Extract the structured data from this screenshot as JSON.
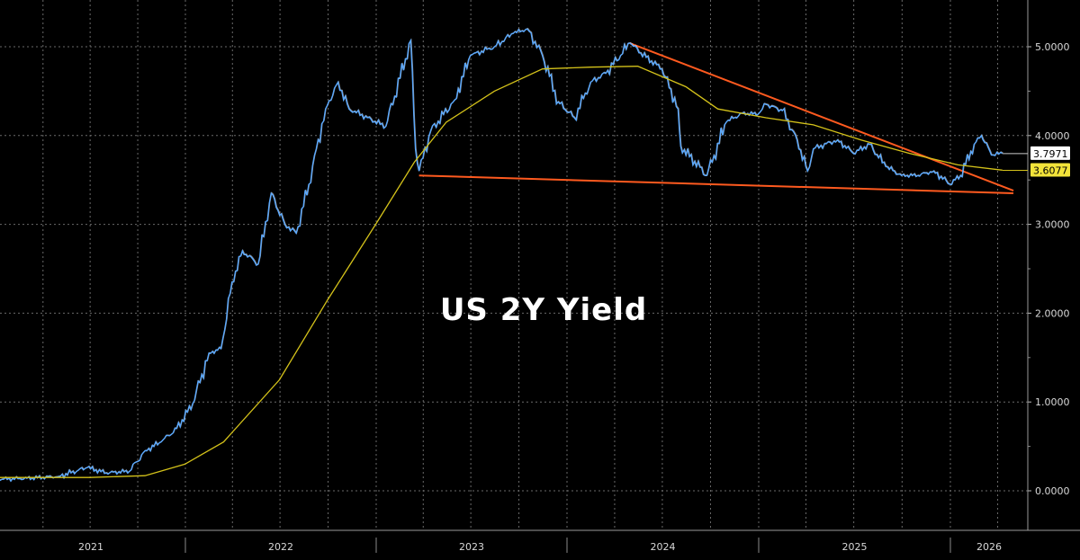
{
  "chart_data": {
    "type": "line",
    "title": "US 2Y Yield",
    "xlabel": "",
    "ylabel": "",
    "x_tick_labels": [
      "2021",
      "2022",
      "2023",
      "2024",
      "2025",
      "2026"
    ],
    "y_ticks": [
      0,
      1,
      2,
      3,
      4,
      5
    ],
    "y_tick_labels": [
      "0.0000",
      "1.0000",
      "2.0000",
      "3.0000",
      "4.0000",
      "5.0000"
    ],
    "ylim": [
      -0.25,
      5.5
    ],
    "grid": true,
    "legend": "none",
    "colors": {
      "price": "#5aa9ff",
      "price_highlight": "#ffffff",
      "moving_average": "#d4c21a",
      "trendline": "#ff5a1f",
      "last_price_tag": "#ffffff",
      "ma_tag": "#f2e33a"
    },
    "series": [
      {
        "name": "",
        "role": "price",
        "color": "#5aa9ff",
        "points": [
          [
            "2020-05-01",
            0.16
          ],
          [
            "2020-07-01",
            0.15
          ],
          [
            "2020-09-01",
            0.14
          ],
          [
            "2020-11-01",
            0.15
          ],
          [
            "2021-01-15",
            0.13
          ],
          [
            "2021-03-01",
            0.14
          ],
          [
            "2021-05-01",
            0.16
          ],
          [
            "2021-06-25",
            0.26
          ],
          [
            "2021-08-01",
            0.2
          ],
          [
            "2021-09-15",
            0.22
          ],
          [
            "2021-10-15",
            0.45
          ],
          [
            "2021-11-15",
            0.55
          ],
          [
            "2021-12-15",
            0.7
          ],
          [
            "2022-01-15",
            0.98
          ],
          [
            "2022-02-15",
            1.55
          ],
          [
            "2022-03-10",
            1.6
          ],
          [
            "2022-03-31",
            2.35
          ],
          [
            "2022-04-20",
            2.7
          ],
          [
            "2022-05-20",
            2.55
          ],
          [
            "2022-06-14",
            3.35
          ],
          [
            "2022-07-10",
            3.0
          ],
          [
            "2022-08-01",
            2.9
          ],
          [
            "2022-08-25",
            3.45
          ],
          [
            "2022-09-26",
            4.3
          ],
          [
            "2022-10-20",
            4.6
          ],
          [
            "2022-11-10",
            4.3
          ],
          [
            "2022-12-15",
            4.2
          ],
          [
            "2023-01-19",
            4.1
          ],
          [
            "2023-03-08",
            5.07
          ],
          [
            "2023-03-17",
            3.85
          ],
          [
            "2023-03-24",
            3.6
          ],
          [
            "2023-04-15",
            4.05
          ],
          [
            "2023-05-31",
            4.4
          ],
          [
            "2023-06-30",
            4.9
          ],
          [
            "2023-08-15",
            5.0
          ],
          [
            "2023-09-20",
            5.15
          ],
          [
            "2023-10-17",
            5.2
          ],
          [
            "2023-11-15",
            4.9
          ],
          [
            "2023-12-15",
            4.38
          ],
          [
            "2024-01-15",
            4.2
          ],
          [
            "2024-02-15",
            4.6
          ],
          [
            "2024-03-15",
            4.7
          ],
          [
            "2024-04-30",
            5.04
          ],
          [
            "2024-05-31",
            4.88
          ],
          [
            "2024-06-30",
            4.75
          ],
          [
            "2024-07-31",
            4.3
          ],
          [
            "2024-08-05",
            3.88
          ],
          [
            "2024-09-24",
            3.55
          ],
          [
            "2024-10-31",
            4.15
          ],
          [
            "2024-11-30",
            4.25
          ],
          [
            "2024-12-31",
            4.24
          ],
          [
            "2025-01-15",
            4.35
          ],
          [
            "2025-02-15",
            4.28
          ],
          [
            "2025-03-15",
            3.95
          ],
          [
            "2025-04-04",
            3.6
          ],
          [
            "2025-04-15",
            3.85
          ],
          [
            "2025-05-31",
            3.95
          ],
          [
            "2025-06-30",
            3.8
          ],
          [
            "2025-07-31",
            3.9
          ],
          [
            "2025-08-31",
            3.65
          ],
          [
            "2025-09-30",
            3.55
          ],
          [
            "2025-10-31",
            3.55
          ],
          [
            "2025-11-30",
            3.6
          ],
          [
            "2025-12-31",
            3.45
          ],
          [
            "2026-01-20",
            3.55
          ],
          [
            "2026-02-15",
            3.9
          ],
          [
            "2026-03-01",
            4.0
          ],
          [
            "2026-03-20",
            3.78
          ],
          [
            "2026-04-10",
            3.8
          ]
        ]
      },
      {
        "name": "",
        "role": "moving_average",
        "color": "#d4c21a",
        "points": [
          [
            "2020-05-01",
            0.15
          ],
          [
            "2021-06-30",
            0.15
          ],
          [
            "2021-10-15",
            0.17
          ],
          [
            "2021-12-31",
            0.3
          ],
          [
            "2022-03-15",
            0.55
          ],
          [
            "2022-06-30",
            1.25
          ],
          [
            "2022-09-30",
            2.15
          ],
          [
            "2022-12-31",
            3.0
          ],
          [
            "2023-03-15",
            3.7
          ],
          [
            "2023-05-15",
            4.15
          ],
          [
            "2023-08-15",
            4.5
          ],
          [
            "2023-11-15",
            4.75
          ],
          [
            "2024-02-15",
            4.77
          ],
          [
            "2024-05-15",
            4.78
          ],
          [
            "2024-08-15",
            4.55
          ],
          [
            "2024-10-15",
            4.3
          ],
          [
            "2025-01-15",
            4.2
          ],
          [
            "2025-04-15",
            4.12
          ],
          [
            "2025-07-15",
            3.95
          ],
          [
            "2025-10-15",
            3.8
          ],
          [
            "2026-01-15",
            3.67
          ],
          [
            "2026-04-10",
            3.61
          ]
        ]
      }
    ],
    "trendlines": [
      {
        "points": [
          [
            "2023-03-24",
            3.55
          ],
          [
            "2026-05-01",
            3.35
          ]
        ]
      },
      {
        "points": [
          [
            "2024-04-30",
            5.04
          ],
          [
            "2026-05-01",
            3.38
          ]
        ]
      }
    ],
    "last_value_tags": [
      {
        "label": "3.7971",
        "value": 3.7971,
        "role": "price"
      },
      {
        "label": "3.6077",
        "value": 3.6077,
        "role": "moving_average"
      }
    ]
  }
}
